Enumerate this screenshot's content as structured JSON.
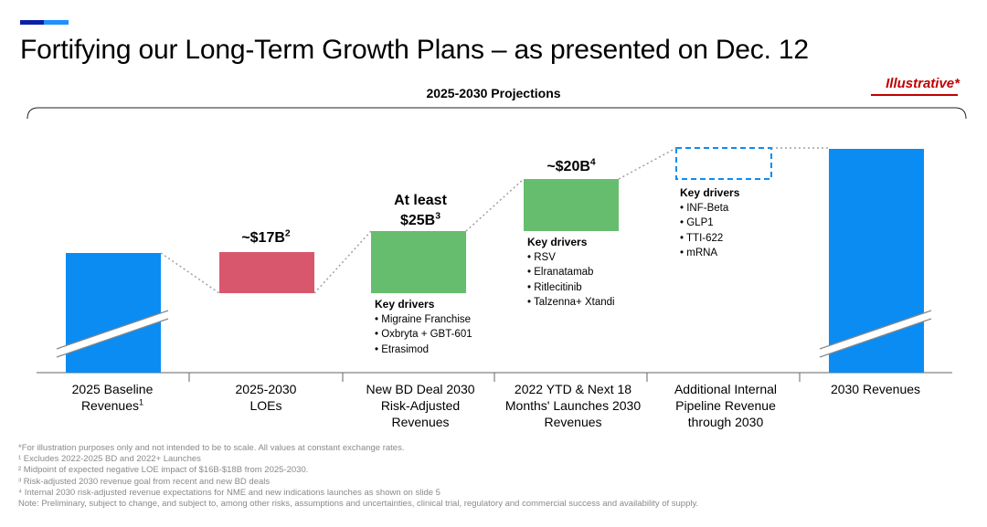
{
  "header": {
    "title": "Fortifying our Long-Term Growth Plans – as presented on Dec. 12",
    "illustrative": "Illustrative*",
    "projections_title": "2025-2030 Projections"
  },
  "colors": {
    "blue": "#0b8cf2",
    "red": "#d9576d",
    "green": "#66bd6d",
    "dotted": "#a0a0a0",
    "accent_dark": "#0a1fa8",
    "accent_light": "#1e90ff"
  },
  "chart_data": {
    "type": "waterfall",
    "title": "2025-2030 Projections",
    "note": "For illustration purposes only and not intended to be to scale.",
    "categories": [
      {
        "label": "2025 Baseline Revenues",
        "footnote": "1"
      },
      {
        "label": "2025-2030 LOEs",
        "footnote": ""
      },
      {
        "label": "New BD Deal 2030 Risk-Adjusted Revenues",
        "footnote": ""
      },
      {
        "label": "2022 YTD & Next 18 Months' Launches 2030 Revenues",
        "footnote": ""
      },
      {
        "label": "Additional Internal Pipeline Revenue through 2030",
        "footnote": ""
      },
      {
        "label": "2030 Revenues",
        "footnote": ""
      }
    ],
    "bars": [
      {
        "kind": "total",
        "value_label": "",
        "value_billion": null
      },
      {
        "kind": "decrease",
        "value_label": "~$17B",
        "footnote": "2",
        "value_billion": -17
      },
      {
        "kind": "increase",
        "value_label_line1": "At least",
        "value_label": "$25B",
        "footnote": "3",
        "value_billion": 25
      },
      {
        "kind": "increase",
        "value_label": "~$20B",
        "footnote": "4",
        "value_billion": 20
      },
      {
        "kind": "increase_unquantified",
        "value_label": "",
        "value_billion": null
      },
      {
        "kind": "total",
        "value_label": "",
        "value_billion": null
      }
    ]
  },
  "drivers": {
    "heading": "Key drivers",
    "bd": [
      "Migraine Franchise",
      "Oxbryta + GBT-601",
      "Etrasimod"
    ],
    "launches": [
      "RSV",
      "Elranatamab",
      "Ritlecitinib",
      "Talzenna+ Xtandi"
    ],
    "pipeline": [
      "INF-Beta",
      "GLP1",
      "TTI-622",
      "mRNA"
    ]
  },
  "footnotes": [
    "*For illustration purposes only and not intended to be to scale. All values at constant exchange rates.",
    "¹ Excludes 2022-2025 BD and 2022+ Launches",
    "² Midpoint of expected negative LOE impact of $16B-$18B from 2025-2030.",
    "³ Risk-adjusted 2030 revenue goal from recent and new BD deals",
    "⁴ Internal 2030 risk-adjusted revenue expectations for NME and new indications launches as shown on slide 5",
    "Note: Preliminary, subject to change, and subject to, among other risks, assumptions and uncertainties, clinical trial, regulatory and commercial success and availability of supply."
  ]
}
